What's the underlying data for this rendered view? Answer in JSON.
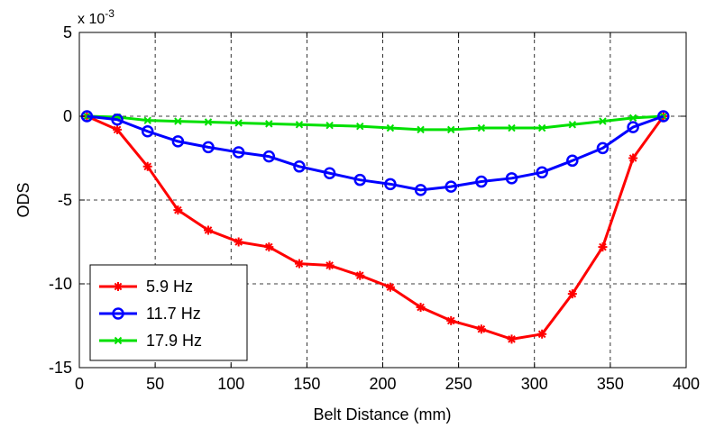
{
  "chart_data": {
    "type": "line",
    "xlabel": "Belt Distance (mm)",
    "ylabel": "ODS",
    "y_multiplier": "x 10",
    "y_multiplier_exponent": "-3",
    "xlim": [
      0,
      400
    ],
    "ylim": [
      -15,
      5
    ],
    "x_ticks": [
      "0",
      "50",
      "100",
      "150",
      "200",
      "250",
      "300",
      "350",
      "400"
    ],
    "y_ticks": [
      "5",
      "0",
      "-5",
      "-10",
      "-15"
    ],
    "grid": true,
    "legend_position": "bottom-left",
    "x": [
      5,
      25,
      45,
      65,
      85,
      105,
      125,
      145,
      165,
      185,
      205,
      225,
      245,
      265,
      285,
      305,
      325,
      345,
      365,
      385
    ],
    "series": [
      {
        "name": "5.9 Hz",
        "color": "#ff0000",
        "marker": "asterisk",
        "values": [
          0,
          -0.8,
          -3.0,
          -5.6,
          -6.8,
          -7.5,
          -7.8,
          -8.8,
          -8.9,
          -9.5,
          -10.2,
          -11.4,
          -12.2,
          -12.7,
          -13.3,
          -13.0,
          -10.6,
          -7.8,
          -2.5,
          0
        ]
      },
      {
        "name": "11.7 Hz",
        "color": "#0000ff",
        "marker": "circle",
        "values": [
          0,
          -0.2,
          -0.9,
          -1.5,
          -1.85,
          -2.15,
          -2.4,
          -3.0,
          -3.4,
          -3.8,
          -4.05,
          -4.4,
          -4.2,
          -3.9,
          -3.7,
          -3.35,
          -2.65,
          -1.9,
          -0.65,
          0
        ]
      },
      {
        "name": "17.9 Hz",
        "color": "#00e000",
        "marker": "x",
        "values": [
          0,
          -0.05,
          -0.25,
          -0.3,
          -0.35,
          -0.4,
          -0.45,
          -0.5,
          -0.55,
          -0.6,
          -0.7,
          -0.8,
          -0.8,
          -0.7,
          -0.7,
          -0.7,
          -0.5,
          -0.3,
          -0.1,
          0
        ]
      }
    ]
  }
}
